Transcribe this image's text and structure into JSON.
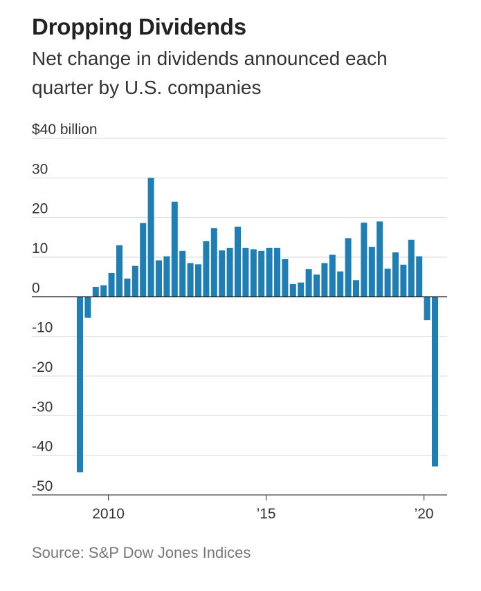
{
  "header": {
    "title": "Dropping Dividends",
    "subtitle": "Net change in dividends announced each quarter by U.S. companies"
  },
  "footer": {
    "source": "Source: S&P Dow Jones Indices"
  },
  "chart_data": {
    "type": "bar",
    "title": "Dropping Dividends",
    "subtitle": "Net change in dividends announced each quarter by U.S. companies",
    "ylabel": "",
    "unit_label": "$40 billion",
    "ylim": [
      -50,
      40
    ],
    "yticks": [
      40,
      30,
      20,
      10,
      0,
      -10,
      -20,
      -30,
      -40,
      -50
    ],
    "ytick_labels": [
      "$40 billion",
      "30",
      "20",
      "10",
      "0",
      "-10",
      "-20",
      "-30",
      "-40",
      "-50"
    ],
    "xticks": [
      2010,
      2015,
      2020
    ],
    "xtick_labels": [
      "2010",
      "’15",
      "’20"
    ],
    "grid": true,
    "bar_color": "#1f7fb4",
    "categories": [
      "2009 Q1",
      "2009 Q2",
      "2009 Q3",
      "2009 Q4",
      "2010 Q1",
      "2010 Q2",
      "2010 Q3",
      "2010 Q4",
      "2011 Q1",
      "2011 Q2",
      "2011 Q3",
      "2011 Q4",
      "2012 Q1",
      "2012 Q2",
      "2012 Q3",
      "2012 Q4",
      "2013 Q1",
      "2013 Q2",
      "2013 Q3",
      "2013 Q4",
      "2014 Q1",
      "2014 Q2",
      "2014 Q3",
      "2014 Q4",
      "2015 Q1",
      "2015 Q2",
      "2015 Q3",
      "2015 Q4",
      "2016 Q1",
      "2016 Q2",
      "2016 Q3",
      "2016 Q4",
      "2017 Q1",
      "2017 Q2",
      "2017 Q3",
      "2017 Q4",
      "2018 Q1",
      "2018 Q2",
      "2018 Q3",
      "2018 Q4",
      "2019 Q1",
      "2019 Q2",
      "2019 Q3",
      "2019 Q4",
      "2020 Q1",
      "2020 Q2"
    ],
    "values": [
      -44.3,
      -5.3,
      2.5,
      2.9,
      6.0,
      13.0,
      4.6,
      7.8,
      18.6,
      30.0,
      9.2,
      10.2,
      24.0,
      11.6,
      8.5,
      8.2,
      14.0,
      17.3,
      11.7,
      12.3,
      17.7,
      12.3,
      12.0,
      11.6,
      12.3,
      12.3,
      9.5,
      3.2,
      3.6,
      7.0,
      5.6,
      8.5,
      10.6,
      6.4,
      14.8,
      4.2,
      18.7,
      12.6,
      19.0,
      7.1,
      11.2,
      8.1,
      14.4,
      10.2,
      -5.9,
      -42.8
    ]
  }
}
